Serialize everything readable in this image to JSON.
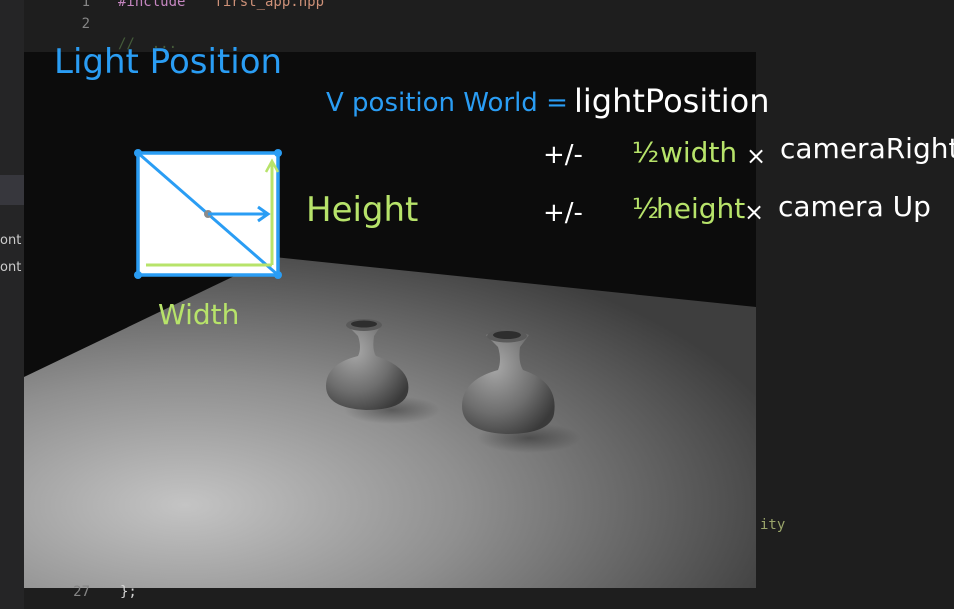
{
  "editor": {
    "line_numbers": [
      "1",
      "2",
      "27"
    ],
    "code_lines": {
      "include_directive": "#include",
      "include_file": "\"first_app.hpp\"",
      "line3_partial": "//  ... ",
      "closing": "};"
    },
    "sidebar_fragments": [
      "ont",
      "ont"
    ],
    "right_fragment": "ity"
  },
  "annotations": {
    "title": "Light Position",
    "equation_lhs": "V position World =",
    "equation_rhs": "lightPosition",
    "term1_sign": "+/-",
    "term1_fraction": "½",
    "term1_dim": "width",
    "term1_op": "×",
    "term1_vec": "cameraRight",
    "term2_sign": "+/-",
    "term2_fraction": "½",
    "term2_dim": "height",
    "term2_op": "×",
    "term2_vec": "camera Up",
    "diagram_height_label": "Height",
    "diagram_width_label": "Width"
  },
  "colors": {
    "blue_ink": "#2a9df4",
    "green_ink": "#b7e36a",
    "white_ink": "#ffffff"
  }
}
